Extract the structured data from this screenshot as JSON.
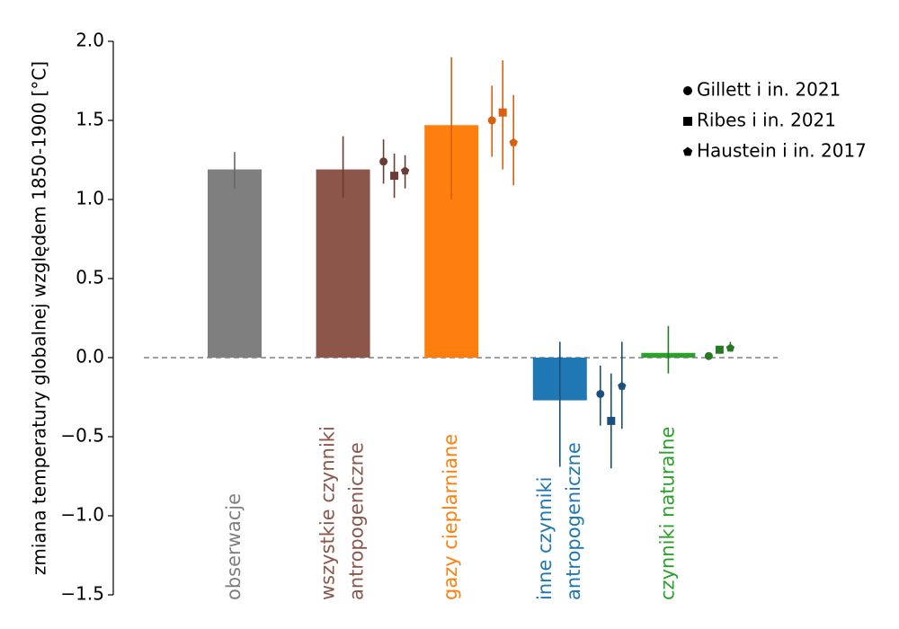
{
  "chart_data": {
    "type": "bar",
    "y_label": "zmiana temperatury globalnej względem 1850-1900 [°C]",
    "categories": [
      "obserwacje",
      "wszystkie czynniki\nantropogeniczne",
      "gazy cieplarniane",
      "inne czynniki\nantropogeniczne",
      "czynniki naturalne"
    ],
    "colors": [
      "#7f7f7f",
      "#8c564b",
      "#ff7f0e",
      "#1f77b4",
      "#2ca02c"
    ],
    "values": [
      1.19,
      1.19,
      1.47,
      -0.27,
      0.03
    ],
    "lower": [
      1.07,
      1.01,
      1.0,
      -0.69,
      -0.1
    ],
    "upper": [
      1.3,
      1.4,
      1.9,
      0.1,
      0.2
    ],
    "estimate_colors": [
      null,
      "#6b3c35",
      "#d9600c",
      "#1b4f7d",
      "#267a26"
    ],
    "series": [
      {
        "name": "Gillett i in. 2021",
        "marker": "circle",
        "values": [
          null,
          1.24,
          1.5,
          -0.23,
          0.01
        ],
        "lower": [
          null,
          1.1,
          1.27,
          -0.43,
          -0.01
        ],
        "upper": [
          null,
          1.38,
          1.72,
          -0.05,
          0.03
        ]
      },
      {
        "name": "Ribes i in. 2021",
        "marker": "square",
        "values": [
          null,
          1.15,
          1.55,
          -0.4,
          0.05
        ],
        "lower": [
          null,
          1.01,
          1.19,
          -0.7,
          0.04
        ],
        "upper": [
          null,
          1.29,
          1.88,
          -0.1,
          0.06
        ]
      },
      {
        "name": "Haustein i in. 2017",
        "marker": "pentagon",
        "values": [
          null,
          1.18,
          1.36,
          -0.18,
          0.06
        ],
        "lower": [
          null,
          1.07,
          1.09,
          -0.45,
          0.04
        ],
        "upper": [
          null,
          1.28,
          1.66,
          0.1,
          0.1
        ]
      }
    ],
    "ylim": [
      -1.5,
      2.0
    ],
    "yticks": [
      {
        "value": -1.5,
        "label": "−1.5"
      },
      {
        "value": -1.0,
        "label": "−1.0"
      },
      {
        "value": -0.5,
        "label": "−0.5"
      },
      {
        "value": 0,
        "label": "0.0"
      },
      {
        "value": 0.5,
        "label": "0.5"
      },
      {
        "value": 1.0,
        "label": "1.0"
      },
      {
        "value": 1.5,
        "label": "1.5"
      },
      {
        "value": 2.0,
        "label": "2.0"
      }
    ],
    "legend": "upper right"
  }
}
